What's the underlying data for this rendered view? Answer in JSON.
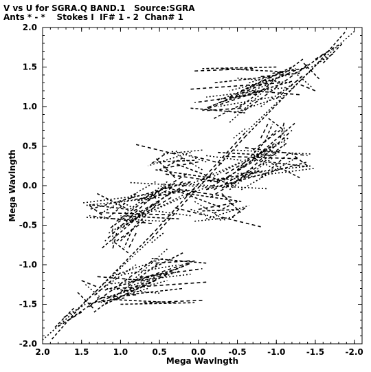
{
  "header": {
    "line1": "V vs U for SGRA.Q BAND.1   Source:SGRA",
    "line2": "Ants * - *    Stokes I  IF# 1 - 2  Chan# 1"
  },
  "chart_data": {
    "type": "scatter",
    "xlabel": "Mega Wavlngth",
    "ylabel": "Mega Wavlngth",
    "xlim": [
      2.0,
      -2.1
    ],
    "ylim": [
      -2.0,
      2.0
    ],
    "x_reversed": true,
    "grid": false,
    "x_ticks": [
      {
        "value": 2.0,
        "label": "2.0"
      },
      {
        "value": 1.5,
        "label": "1.5"
      },
      {
        "value": 1.0,
        "label": "1.0"
      },
      {
        "value": 0.5,
        "label": "0.5"
      },
      {
        "value": 0.0,
        "label": "0.0"
      },
      {
        "value": -0.5,
        "label": "-0.5"
      },
      {
        "value": -1.0,
        "label": "-1.0"
      },
      {
        "value": -1.5,
        "label": "-1.5"
      },
      {
        "value": -2.0,
        "label": "-2.0"
      }
    ],
    "y_ticks": [
      {
        "value": 2.0,
        "label": "2.0"
      },
      {
        "value": 1.5,
        "label": "1.5"
      },
      {
        "value": 1.0,
        "label": "1.0"
      },
      {
        "value": 0.5,
        "label": "0.5"
      },
      {
        "value": 0.0,
        "label": "0.0"
      },
      {
        "value": -0.5,
        "label": "-0.5"
      },
      {
        "value": -1.0,
        "label": "-1.0"
      },
      {
        "value": -1.5,
        "label": "-1.5"
      },
      {
        "value": -2.0,
        "label": "-2.0"
      }
    ],
    "series": [
      {
        "tracks": [
          {
            "u": [
              1.88,
              1.46
            ],
            "v": [
              -1.94,
              -1.47
            ]
          },
          {
            "u": [
              1.46,
              0.6
            ],
            "v": [
              -1.47,
              -0.67
            ]
          },
          {
            "u": [
              0.6,
              -0.6
            ],
            "v": [
              -0.67,
              0.62
            ]
          },
          {
            "u": [
              -0.6,
              -1.46
            ],
            "v": [
              0.62,
              1.48
            ]
          },
          {
            "u": [
              -1.46,
              -2.0
            ],
            "v": [
              1.48,
              1.95
            ]
          },
          {
            "u": [
              1.4,
              0.55
            ],
            "v": [
              -1.53,
              -0.92
            ]
          },
          {
            "u": [
              1.34,
              0.5
            ],
            "v": [
              -1.6,
              -0.97
            ]
          },
          {
            "u": [
              1.3,
              0.4
            ],
            "v": [
              -1.44,
              -1.2
            ]
          },
          {
            "u": [
              1.25,
              0.1
            ],
            "v": [
              -1.46,
              -0.98
            ]
          },
          {
            "u": [
              1.2,
              0.3
            ],
            "v": [
              -1.32,
              -1.06
            ]
          },
          {
            "u": [
              1.12,
              0.1
            ],
            "v": [
              -1.24,
              -1.12
            ]
          },
          {
            "u": [
              1.05,
              -0.1
            ],
            "v": [
              -1.3,
              -1.22
            ]
          },
          {
            "u": [
              0.92,
              0.2
            ],
            "v": [
              -1.38,
              -1.3
            ]
          },
          {
            "u": [
              0.95,
              0.25
            ],
            "v": [
              -1.12,
              -1.0
            ]
          },
          {
            "u": [
              0.75,
              -0.05
            ],
            "v": [
              -1.16,
              -1.05
            ]
          },
          {
            "u": [
              1.0,
              0.05
            ],
            "v": [
              -1.5,
              -1.48
            ]
          },
          {
            "u": [
              1.1,
              0.45
            ],
            "v": [
              -1.14,
              -0.92
            ]
          },
          {
            "u": [
              1.5,
              1.3
            ],
            "v": [
              -1.2,
              -1.28
            ]
          },
          {
            "u": [
              1.55,
              1.35
            ],
            "v": [
              -1.35,
              -1.55
            ]
          },
          {
            "u": [
              1.45,
              1.25
            ],
            "v": [
              -1.25,
              -1.42
            ]
          },
          {
            "u": [
              0.55,
              0.1
            ],
            "v": [
              -0.98,
              -0.95
            ]
          },
          {
            "u": [
              -0.25,
              -1.0
            ],
            "v": [
              0.42,
              0.38
            ]
          },
          {
            "u": [
              -0.1,
              -0.55
            ],
            "v": [
              0.38,
              0.32
            ]
          },
          {
            "u": [
              -0.35,
              -1.3
            ],
            "v": [
              0.37,
              0.34
            ]
          },
          {
            "u": [
              -0.9,
              -1.4
            ],
            "v": [
              0.3,
              0.24
            ]
          },
          {
            "u": [
              -0.2,
              -1.05
            ],
            "v": [
              0.12,
              0.55
            ]
          },
          {
            "u": [
              -0.1,
              -0.9
            ],
            "v": [
              -0.05,
              0.42
            ]
          },
          {
            "u": [
              -0.05,
              -0.85
            ],
            "v": [
              0.05,
              0.18
            ]
          },
          {
            "u": [
              0.1,
              -0.55
            ],
            "v": [
              0.02,
              0.3
            ]
          },
          {
            "u": [
              -1.05,
              -1.1
            ],
            "v": [
              0.6,
              0.8
            ]
          },
          {
            "u": [
              -0.85,
              -0.95
            ],
            "v": [
              0.55,
              0.78
            ]
          },
          {
            "u": [
              0.2,
              -0.9
            ],
            "v": [
              0.02,
              -0.04
            ]
          },
          {
            "u": [
              0.25,
              -0.45
            ],
            "v": [
              -0.05,
              -0.15
            ]
          },
          {
            "u": [
              0.15,
              -0.55
            ],
            "v": [
              -0.1,
              -0.2
            ]
          },
          {
            "u": [
              0.05,
              -0.35
            ],
            "v": [
              -0.2,
              -0.44
            ]
          },
          {
            "u": [
              0.3,
              -0.1
            ],
            "v": [
              -0.28,
              -0.38
            ]
          },
          {
            "u": [
              0.45,
              -0.3
            ],
            "v": [
              0.0,
              -0.28
            ]
          },
          {
            "u": [
              0.1,
              -0.3
            ],
            "v": [
              -0.3,
              -0.44
            ]
          },
          {
            "u": [
              0.2,
              0.7
            ],
            "v": [
              0.05,
              -0.22
            ]
          },
          {
            "u": [
              0.3,
              0.8
            ],
            "v": [
              0.03,
              -0.2
            ]
          },
          {
            "u": [
              0.4,
              0.95
            ],
            "v": [
              0.05,
              -0.35
            ]
          },
          {
            "u": [
              0.45,
              1.05
            ],
            "v": [
              -0.02,
              -0.45
            ]
          },
          {
            "u": [
              0.35,
              1.0
            ],
            "v": [
              -0.08,
              -0.55
            ]
          },
          {
            "u": [
              0.5,
              1.15
            ],
            "v": [
              -0.2,
              -0.6
            ]
          },
          {
            "u": [
              0.55,
              1.2
            ],
            "v": [
              -0.1,
              -0.7
            ]
          },
          {
            "u": [
              0.6,
              1.25
            ],
            "v": [
              -0.25,
              -0.8
            ]
          },
          {
            "u": [
              0.5,
              1.45
            ],
            "v": [
              -0.15,
              -0.25
            ]
          },
          {
            "u": [
              0.7,
              1.05
            ],
            "v": [
              -0.45,
              -0.7
            ]
          },
          {
            "u": [
              0.8,
              1.15
            ],
            "v": [
              -0.3,
              -0.55
            ]
          },
          {
            "u": [
              0.45,
              0.6
            ],
            "v": [
              -0.6,
              -0.72
            ]
          },
          {
            "u": [
              0.15,
              0.55
            ],
            "v": [
              0.15,
              -0.1
            ]
          },
          {
            "u": [
              0.2,
              0.5
            ],
            "v": [
              0.35,
              0.2
            ]
          },
          {
            "u": [
              0.1,
              0.65
            ],
            "v": [
              0.42,
              0.25
            ]
          },
          {
            "u": [
              0.0,
              0.45
            ],
            "v": [
              0.3,
              0.22
            ]
          },
          {
            "u": [
              -0.1,
              -1.4
            ],
            "v": [
              -0.05,
              0.3
            ]
          },
          {
            "u": [
              -0.15,
              -1.5
            ],
            "v": [
              0.05,
              0.22
            ]
          },
          {
            "u": [
              -0.3,
              -0.8
            ],
            "v": [
              -0.4,
              -0.52
            ]
          },
          {
            "u": [
              -0.05,
              -0.55
            ],
            "v": [
              -0.32,
              -0.3
            ]
          },
          {
            "u": [
              0.05,
              -0.45
            ],
            "v": [
              -0.45,
              -0.4
            ]
          },
          {
            "u": [
              -0.35,
              -0.95
            ],
            "v": [
              0.15,
              0.5
            ]
          },
          {
            "u": [
              -0.5,
              -1.0
            ],
            "v": [
              0.2,
              0.7
            ]
          },
          {
            "u": [
              -0.45,
              -1.45
            ],
            "v": [
              0.45,
              0.4
            ]
          },
          {
            "u": [
              -0.6,
              -1.4
            ],
            "v": [
              0.48,
              0.38
            ]
          },
          {
            "u": [
              -0.8,
              -1.15
            ],
            "v": [
              0.1,
              0.4
            ]
          },
          {
            "u": [
              -0.55,
              -1.25
            ],
            "v": [
              -0.05,
              0.35
            ]
          },
          {
            "u": [
              0.6,
              0.4
            ],
            "v": [
              0.28,
              0.42
            ]
          },
          {
            "u": [
              0.3,
              0.55
            ],
            "v": [
              0.1,
              0.35
            ]
          },
          {
            "u": [
              -0.25,
              -1.05
            ],
            "v": [
              1.08,
              1.38
            ]
          },
          {
            "u": [
              -0.4,
              -1.1
            ],
            "v": [
              1.12,
              1.45
            ]
          },
          {
            "u": [
              -0.55,
              -1.2
            ],
            "v": [
              1.2,
              1.5
            ]
          },
          {
            "u": [
              -0.65,
              -1.25
            ],
            "v": [
              1.3,
              1.48
            ]
          },
          {
            "u": [
              -0.8,
              -1.3
            ],
            "v": [
              1.38,
              1.42
            ]
          },
          {
            "u": [
              -0.95,
              -1.4
            ],
            "v": [
              1.42,
              1.49
            ]
          },
          {
            "u": [
              -0.15,
              -0.95
            ],
            "v": [
              1.0,
              1.3
            ]
          },
          {
            "u": [
              -0.05,
              -0.8
            ],
            "v": [
              0.95,
              1.2
            ]
          },
          {
            "u": [
              -0.2,
              -0.6
            ],
            "v": [
              0.85,
              1.05
            ]
          },
          {
            "u": [
              -0.4,
              -0.9
            ],
            "v": [
              0.8,
              1.25
            ]
          },
          {
            "u": [
              0.05,
              -0.7
            ],
            "v": [
              1.45,
              1.48
            ]
          },
          {
            "u": [
              -0.3,
              -1.1
            ],
            "v": [
              1.48,
              1.44
            ]
          },
          {
            "u": [
              -0.5,
              -1.2
            ],
            "v": [
              1.36,
              1.3
            ]
          },
          {
            "u": [
              -0.7,
              -1.3
            ],
            "v": [
              1.2,
              1.15
            ]
          },
          {
            "u": [
              0.1,
              -0.6
            ],
            "v": [
              0.98,
              0.92
            ]
          },
          {
            "u": [
              -0.8,
              -1.3
            ],
            "v": [
              1.0,
              1.35
            ]
          },
          {
            "u": [
              -1.0,
              -1.35
            ],
            "v": [
              1.1,
              1.4
            ]
          },
          {
            "u": [
              -1.3,
              -1.7
            ],
            "v": [
              1.45,
              1.72
            ]
          },
          {
            "u": [
              -1.45,
              -1.75
            ],
            "v": [
              1.5,
              1.68
            ]
          },
          {
            "u": [
              -1.5,
              -1.8
            ],
            "v": [
              1.6,
              1.78
            ]
          },
          {
            "u": [
              -1.6,
              -1.85
            ],
            "v": [
              1.55,
              1.8
            ]
          },
          {
            "u": [
              1.1,
              1.1
            ],
            "v": [
              -0.5,
              -0.75
            ]
          },
          {
            "u": [
              0.8,
              0.9
            ],
            "v": [
              -0.6,
              -0.8
            ]
          },
          {
            "u": [
              -0.9,
              -1.1
            ],
            "v": [
              0.85,
              0.7
            ]
          },
          {
            "u": [
              1.0,
              0.7
            ],
            "v": [
              -0.2,
              -0.35
            ]
          },
          {
            "u": [
              1.4,
              1.2
            ],
            "v": [
              -0.25,
              -0.4
            ]
          },
          {
            "u": [
              1.3,
              0.9
            ],
            "v": [
              -0.1,
              -0.3
            ]
          }
        ]
      }
    ]
  }
}
